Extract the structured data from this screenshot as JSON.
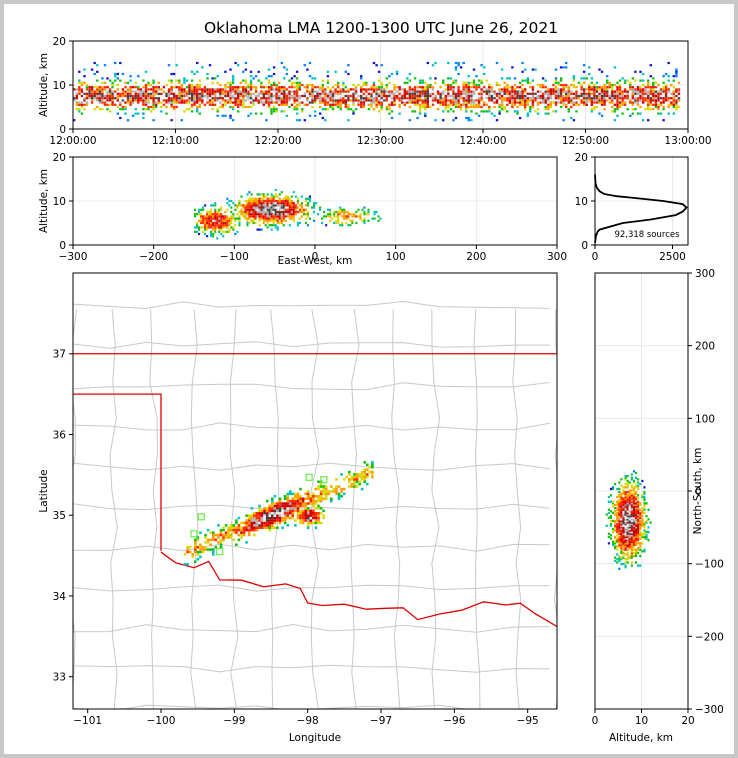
{
  "title": "Oklahoma LMA 1200-1300 UTC June 26, 2021",
  "source_count_label": "92,318 sources",
  "chart_data": [
    {
      "type": "heatmap",
      "panel": "altitude-vs-time",
      "ylabel": "Altitude, km",
      "xlim": [
        "12:00:00",
        "13:00:00"
      ],
      "ylim": [
        0,
        20
      ],
      "xticks": [
        "12:00:00",
        "12:10:00",
        "12:20:00",
        "12:30:00",
        "12:40:00",
        "12:50:00",
        "13:00:00"
      ],
      "yticks": [
        0,
        10,
        20
      ],
      "source_altitude_range_km": [
        2,
        15
      ],
      "core_altitude_range_km": [
        4,
        11
      ]
    },
    {
      "type": "heatmap",
      "panel": "altitude-vs-east-west",
      "xlabel": "East-West, km",
      "ylabel": "Altitude, km",
      "xlim": [
        -300,
        300
      ],
      "ylim": [
        0,
        20
      ],
      "xticks": [
        -300,
        -200,
        -100,
        0,
        100,
        200,
        300
      ],
      "yticks": [
        0,
        10,
        20
      ],
      "core_center": [
        -55,
        8
      ]
    },
    {
      "type": "line",
      "panel": "altitude-histogram",
      "xlim": [
        0,
        3000
      ],
      "ylim": [
        0,
        20
      ],
      "xticks": [
        0,
        2500
      ],
      "yticks": [
        0,
        10,
        20
      ],
      "x": [
        0,
        30,
        80,
        150,
        400,
        900,
        1800,
        2600,
        2830,
        2950,
        2830,
        2200,
        1400,
        700,
        300,
        150,
        60,
        15,
        0
      ],
      "y": [
        0.5,
        2,
        3,
        3.5,
        4,
        5,
        5.8,
        6.8,
        7.6,
        8.5,
        9.3,
        10,
        10.6,
        11.1,
        11.6,
        12.2,
        13,
        14,
        16
      ]
    },
    {
      "type": "scatter",
      "panel": "plan-view-map",
      "xlabel": "Longitude",
      "ylabel": "Latitude",
      "xlim": [
        -101.2,
        -94.6
      ],
      "ylim": [
        32.6,
        38.0
      ],
      "xticks": [
        -101,
        -100,
        -99,
        -98,
        -97,
        -96,
        -95
      ],
      "yticks": [
        33,
        34,
        35,
        36,
        37
      ],
      "core_centers": [
        [
          -98.5,
          34.92
        ],
        [
          -98.0,
          35.0
        ]
      ],
      "station_markers": [
        [
          -99.45,
          34.98
        ],
        [
          -99.55,
          34.77
        ],
        [
          -97.98,
          35.47
        ],
        [
          -97.78,
          35.44
        ],
        [
          -99.2,
          34.55
        ]
      ]
    },
    {
      "type": "heatmap",
      "panel": "north-south-vs-altitude",
      "xlabel": "Altitude, km",
      "ylabel": "North-South, km",
      "xlim": [
        0,
        20
      ],
      "ylim": [
        -300,
        300
      ],
      "xticks": [
        0,
        10,
        20
      ],
      "yticks": [
        -300,
        -200,
        -100,
        0,
        100,
        200,
        300
      ],
      "core_center": [
        7,
        -40
      ]
    }
  ]
}
